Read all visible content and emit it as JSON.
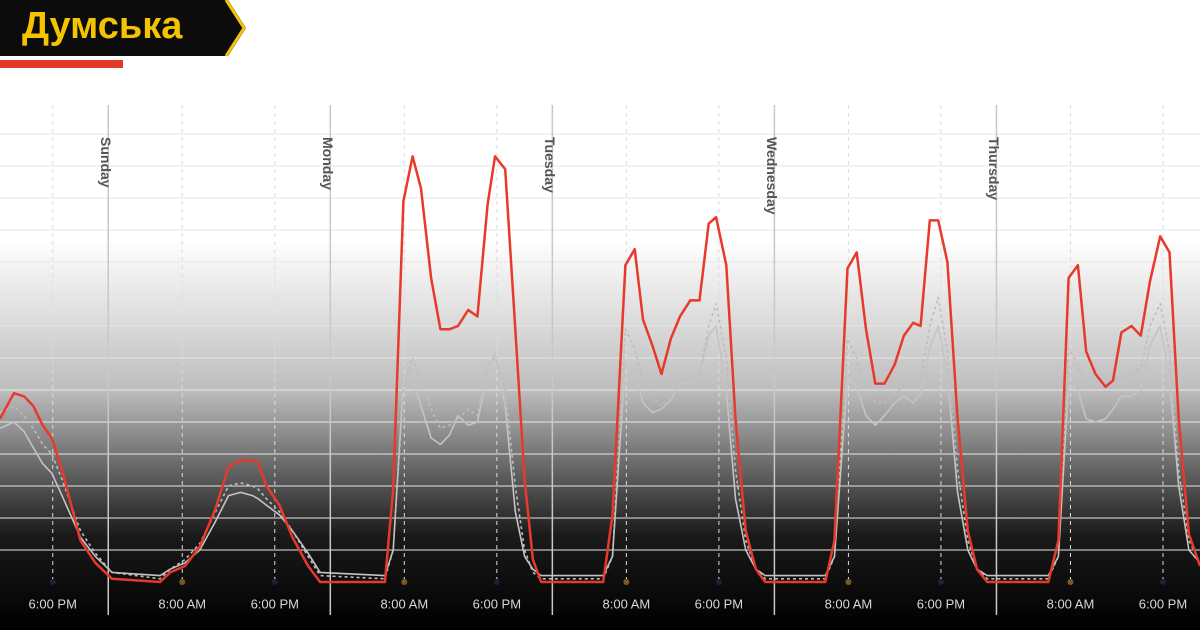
{
  "brand": "Думська",
  "chart_data": {
    "type": "line",
    "x": [
      12.3,
      13.8,
      14.9,
      15.9,
      16.9,
      17.9,
      19.0,
      21.0,
      22.6,
      24.4,
      29.6,
      30.7,
      32.3,
      33.9,
      35.6,
      37.0,
      38.3,
      39.6,
      40.2,
      41.1,
      42.5,
      43.9,
      45.6,
      46.9,
      53.9,
      54.8,
      55.9,
      56.9,
      57.8,
      58.9,
      59.9,
      60.9,
      61.8,
      62.9,
      63.9,
      65.0,
      65.8,
      66.9,
      68.0,
      69.0,
      69.9,
      70.8,
      77.5,
      78.5,
      79.9,
      80.9,
      81.8,
      82.8,
      83.8,
      84.8,
      85.8,
      86.9,
      87.9,
      88.9,
      89.7,
      90.8,
      91.8,
      92.9,
      94.0,
      95.0,
      101.5,
      102.5,
      103.9,
      104.9,
      105.9,
      106.9,
      107.9,
      109.0,
      110.0,
      111.0,
      111.8,
      112.8,
      113.7,
      114.7,
      115.8,
      116.9,
      117.9,
      119.0,
      125.6,
      126.7,
      127.8,
      128.8,
      129.7,
      130.7,
      131.8,
      132.6,
      133.5,
      134.6,
      135.6,
      136.6,
      137.7,
      138.7,
      139.7,
      140.8,
      142.0
    ],
    "series": [
      {
        "color": "#e8392b",
        "values": [
          5.1,
          5.9,
          5.8,
          5.5,
          4.9,
          4.5,
          3.5,
          1.3,
          0.6,
          0.1,
          0,
          0.3,
          0.5,
          1.1,
          2.3,
          3.6,
          3.8,
          3.8,
          3.7,
          3.0,
          2.4,
          1.4,
          0.5,
          0,
          0,
          2.9,
          11.9,
          13.3,
          12.3,
          9.5,
          7.9,
          7.9,
          8.0,
          8.5,
          8.3,
          11.8,
          13.3,
          12.9,
          7.9,
          3.2,
          0.7,
          0,
          0,
          2.1,
          9.9,
          10.4,
          8.2,
          7.4,
          6.5,
          7.6,
          8.3,
          8.8,
          8.8,
          11.2,
          11.4,
          9.9,
          5.1,
          1.6,
          0.4,
          0,
          0,
          1.3,
          9.8,
          10.3,
          7.9,
          6.2,
          6.2,
          6.8,
          7.7,
          8.1,
          8.0,
          11.3,
          11.3,
          10.0,
          5.1,
          1.6,
          0.4,
          0,
          0,
          1.3,
          9.5,
          9.9,
          7.2,
          6.5,
          6.1,
          6.3,
          7.8,
          8.0,
          7.7,
          9.4,
          10.8,
          10.3,
          5.1,
          1.5,
          0.5
        ]
      },
      {
        "color": "#bdbdbd",
        "dashed": true,
        "values": [
          5.3,
          5.5,
          5.2,
          4.8,
          4.3,
          4.0,
          3.2,
          1.6,
          0.9,
          0.3,
          0.1,
          0.4,
          0.7,
          1.2,
          2.2,
          3.0,
          3.1,
          3.0,
          2.9,
          2.6,
          2.2,
          1.6,
          0.8,
          0.2,
          0.1,
          1.0,
          6.0,
          7.0,
          6.3,
          5.4,
          4.8,
          4.9,
          5.1,
          5.4,
          5.2,
          6.8,
          7.0,
          6.0,
          3.0,
          1.0,
          0.3,
          0.1,
          0.1,
          0.8,
          7.9,
          7.3,
          6.2,
          5.8,
          5.5,
          5.9,
          6.3,
          6.4,
          6.5,
          8.0,
          8.7,
          7.0,
          3.5,
          1.3,
          0.4,
          0.1,
          0.1,
          0.8,
          7.6,
          7.0,
          6.0,
          5.6,
          5.6,
          5.9,
          6.1,
          6.0,
          6.3,
          8.0,
          8.9,
          7.2,
          3.5,
          1.3,
          0.4,
          0.1,
          0.1,
          0.8,
          7.3,
          6.8,
          6.0,
          5.8,
          6.0,
          6.3,
          6.4,
          6.5,
          6.7,
          8.0,
          8.7,
          7.2,
          3.5,
          1.3,
          0.6
        ]
      },
      {
        "color": "#c4c4c4",
        "values": [
          4.8,
          5.0,
          4.7,
          4.2,
          3.7,
          3.4,
          2.7,
          1.4,
          0.8,
          0.3,
          0.2,
          0.4,
          0.6,
          1.0,
          1.9,
          2.7,
          2.8,
          2.7,
          2.6,
          2.4,
          2.1,
          1.6,
          0.9,
          0.3,
          0.2,
          1.0,
          6.3,
          6.4,
          5.5,
          4.5,
          4.3,
          4.6,
          5.2,
          4.9,
          5.0,
          6.5,
          7.2,
          5.5,
          2.2,
          0.8,
          0.4,
          0.2,
          0.2,
          0.8,
          6.9,
          6.6,
          5.6,
          5.3,
          5.4,
          5.7,
          6.2,
          6.2,
          6.5,
          7.7,
          8.0,
          6.0,
          2.6,
          1.0,
          0.4,
          0.2,
          0.2,
          0.8,
          6.4,
          6.1,
          5.2,
          4.9,
          5.2,
          5.6,
          5.8,
          5.6,
          5.9,
          7.3,
          8.0,
          6.5,
          2.8,
          1.0,
          0.4,
          0.2,
          0.2,
          0.8,
          6.2,
          6.0,
          5.1,
          5.0,
          5.1,
          5.4,
          5.8,
          5.8,
          6.0,
          7.4,
          8.0,
          6.4,
          3.0,
          1.0,
          0.6
        ]
      }
    ],
    "xlim": [
      12.3,
      142
    ],
    "ylim": [
      0,
      14
    ],
    "yticks": [
      1,
      2,
      3,
      4,
      5,
      6,
      7,
      8,
      9,
      10,
      11,
      12,
      13,
      14
    ],
    "grid": true,
    "xticks": [
      {
        "value": 18,
        "label": "6:00 PM",
        "color": "#17233d"
      },
      {
        "value": 32,
        "label": "8:00 AM",
        "color": "#7a5a22"
      },
      {
        "value": 42,
        "label": "6:00 PM",
        "color": "#17233d"
      },
      {
        "value": 56,
        "label": "8:00 AM",
        "color": "#7a5a22"
      },
      {
        "value": 66,
        "label": "6:00 PM",
        "color": "#17233d"
      },
      {
        "value": 80,
        "label": "8:00 AM",
        "color": "#7a5a22"
      },
      {
        "value": 90,
        "label": "6:00 PM",
        "color": "#17233d"
      },
      {
        "value": 104,
        "label": "8:00 AM",
        "color": "#7a5a22"
      },
      {
        "value": 114,
        "label": "6:00 PM",
        "color": "#17233d"
      },
      {
        "value": 128,
        "label": "8:00 AM",
        "color": "#7a5a22"
      },
      {
        "value": 138,
        "label": "6:00 PM",
        "color": "#17233d"
      }
    ],
    "day_lines": [
      {
        "x": 24,
        "label": "Sunday"
      },
      {
        "x": 48,
        "label": "Monday"
      },
      {
        "x": 72,
        "label": "Tuesday"
      },
      {
        "x": 96,
        "label": "Wednesday"
      },
      {
        "x": 120,
        "label": "Thursday"
      }
    ]
  }
}
